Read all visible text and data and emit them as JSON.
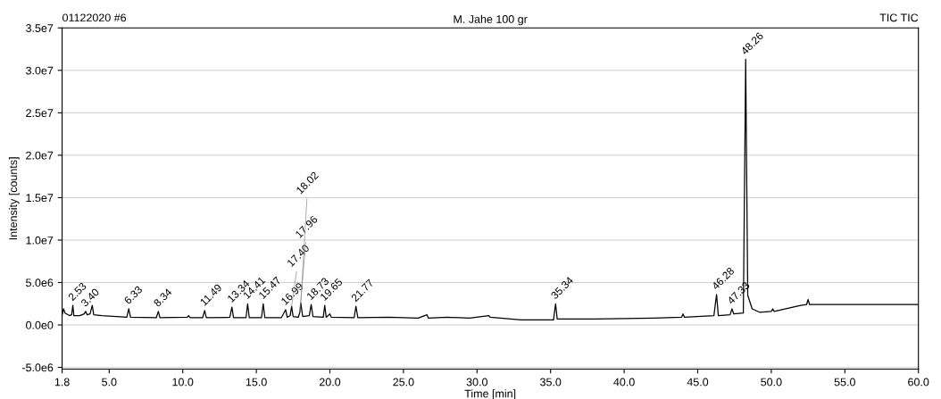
{
  "chart_data": {
    "type": "line",
    "title": "M. Jahe 100 gr",
    "xlabel": "Time [min]",
    "ylabel": "Intensity [counts]",
    "annotations": [
      "01122020 #6",
      "TIC TIC",
      {
        "text": "2.53",
        "x": 2.53,
        "y": 2300000
      },
      {
        "text": "3.40",
        "x": 3.4,
        "y": 1600000
      },
      {
        "text": "6.33",
        "x": 6.33,
        "y": 1900000
      },
      {
        "text": "8.34",
        "x": 8.34,
        "y": 1600000
      },
      {
        "text": "11.49",
        "x": 11.49,
        "y": 1700000
      },
      {
        "text": "13.34",
        "x": 13.34,
        "y": 2100000
      },
      {
        "text": "14.41",
        "x": 14.41,
        "y": 2500000
      },
      {
        "text": "15.47",
        "x": 15.47,
        "y": 2500000
      },
      {
        "text": "16.99",
        "x": 16.99,
        "y": 1800000
      },
      {
        "text": "17.40",
        "x": 17.4,
        "y": 2200000
      },
      {
        "text": "17.96",
        "x": 17.96,
        "y": 1500000
      },
      {
        "text": "18.02",
        "x": 18.02,
        "y": 2600000
      },
      {
        "text": "18.73",
        "x": 18.73,
        "y": 2400000
      },
      {
        "text": "19.65",
        "x": 19.65,
        "y": 2300000
      },
      {
        "text": "21.77",
        "x": 21.77,
        "y": 2200000
      },
      {
        "text": "35.34",
        "x": 35.34,
        "y": 2500000
      },
      {
        "text": "46.28",
        "x": 46.28,
        "y": 3600000
      },
      {
        "text": "47.33",
        "x": 47.33,
        "y": 1900000
      },
      {
        "text": "48.26",
        "x": 48.26,
        "y": 31300000
      }
    ],
    "x": [
      1.8,
      1.9,
      2.0,
      2.3,
      2.45,
      2.53,
      2.6,
      3.0,
      3.3,
      3.4,
      3.5,
      3.7,
      3.85,
      3.95,
      4.5,
      5.5,
      6.2,
      6.33,
      6.45,
      8.2,
      8.34,
      8.45,
      10.3,
      10.4,
      10.5,
      11.35,
      11.49,
      11.6,
      13.2,
      13.34,
      13.45,
      14.3,
      14.41,
      14.52,
      15.35,
      15.47,
      15.58,
      16.7,
      16.99,
      17.1,
      17.3,
      17.4,
      17.5,
      17.85,
      17.96,
      18.02,
      18.15,
      18.6,
      18.73,
      18.85,
      19.55,
      19.65,
      19.75,
      20.0,
      20.1,
      21.65,
      21.77,
      21.9,
      24.0,
      26.0,
      26.6,
      26.7,
      28.0,
      29.5,
      30.8,
      30.9,
      33.0,
      35.2,
      35.34,
      35.45,
      38.0,
      42.0,
      43.9,
      44.0,
      44.1,
      46.1,
      46.28,
      46.4,
      47.2,
      47.33,
      47.45,
      48.1,
      48.26,
      48.4,
      48.7,
      49.2,
      50.0,
      50.1,
      50.2,
      51.0,
      52.0,
      52.4,
      52.5,
      52.6,
      55.0,
      58.0,
      60.0
    ],
    "series": [
      {
        "color": "#000000",
        "values": [
          1200000,
          1900000,
          1400000,
          1100000,
          1200000,
          2300000,
          1100000,
          1100000,
          1300000,
          1600000,
          1200000,
          1300000,
          2300000,
          1200000,
          1100000,
          1000000,
          900000,
          1900000,
          900000,
          850000,
          1600000,
          850000,
          900000,
          1100000,
          850000,
          850000,
          1700000,
          850000,
          900000,
          2100000,
          850000,
          850000,
          2500000,
          850000,
          850000,
          2500000,
          850000,
          850000,
          1800000,
          900000,
          1100000,
          2200000,
          1000000,
          900000,
          1500000,
          2600000,
          1000000,
          1100000,
          2400000,
          1000000,
          900000,
          2300000,
          900000,
          1300000,
          900000,
          850000,
          2200000,
          850000,
          900000,
          800000,
          1200000,
          800000,
          900000,
          800000,
          1100000,
          900000,
          600000,
          600000,
          2500000,
          700000,
          700000,
          800000,
          900000,
          1300000,
          900000,
          1100000,
          3600000,
          1100000,
          1200000,
          1900000,
          1300000,
          1400000,
          31300000,
          3500000,
          1900000,
          1500000,
          1600000,
          1900000,
          1600000,
          1900000,
          2300000,
          2400000,
          3000000,
          2400000,
          2400000,
          2400000,
          2400000
        ]
      }
    ],
    "xlim": [
      1.8,
      60.0
    ],
    "xticks": [
      {
        "value": 1.8,
        "label": "1.8"
      },
      {
        "value": 5.0,
        "label": "5.0"
      },
      {
        "value": 10.0,
        "label": "10.0"
      },
      {
        "value": 15.0,
        "label": "15.0"
      },
      {
        "value": 20.0,
        "label": "20.0"
      },
      {
        "value": 25.0,
        "label": "25.0"
      },
      {
        "value": 30.0,
        "label": "30.0"
      },
      {
        "value": 35.0,
        "label": "35.0"
      },
      {
        "value": 40.0,
        "label": "40.0"
      },
      {
        "value": 45.0,
        "label": "45.0"
      },
      {
        "value": 50.0,
        "label": "50.0"
      },
      {
        "value": 55.0,
        "label": "55.0"
      },
      {
        "value": 60.0,
        "label": "60.0"
      }
    ],
    "ylim": [
      -5200000,
      35000000
    ],
    "yticks": [
      {
        "value": -5000000,
        "label": "-5.0e6"
      },
      {
        "value": 0,
        "label": "0.0e0"
      },
      {
        "value": 5000000,
        "label": "5.0e6"
      },
      {
        "value": 10000000,
        "label": "1.0e7"
      },
      {
        "value": 15000000,
        "label": "1.5e7"
      },
      {
        "value": 20000000,
        "label": "2.0e7"
      },
      {
        "value": 25000000,
        "label": "2.5e7"
      },
      {
        "value": 30000000,
        "label": "3.0e7"
      },
      {
        "value": 35000000,
        "label": "3.5e7"
      }
    ],
    "grid": "y",
    "legend": false
  }
}
